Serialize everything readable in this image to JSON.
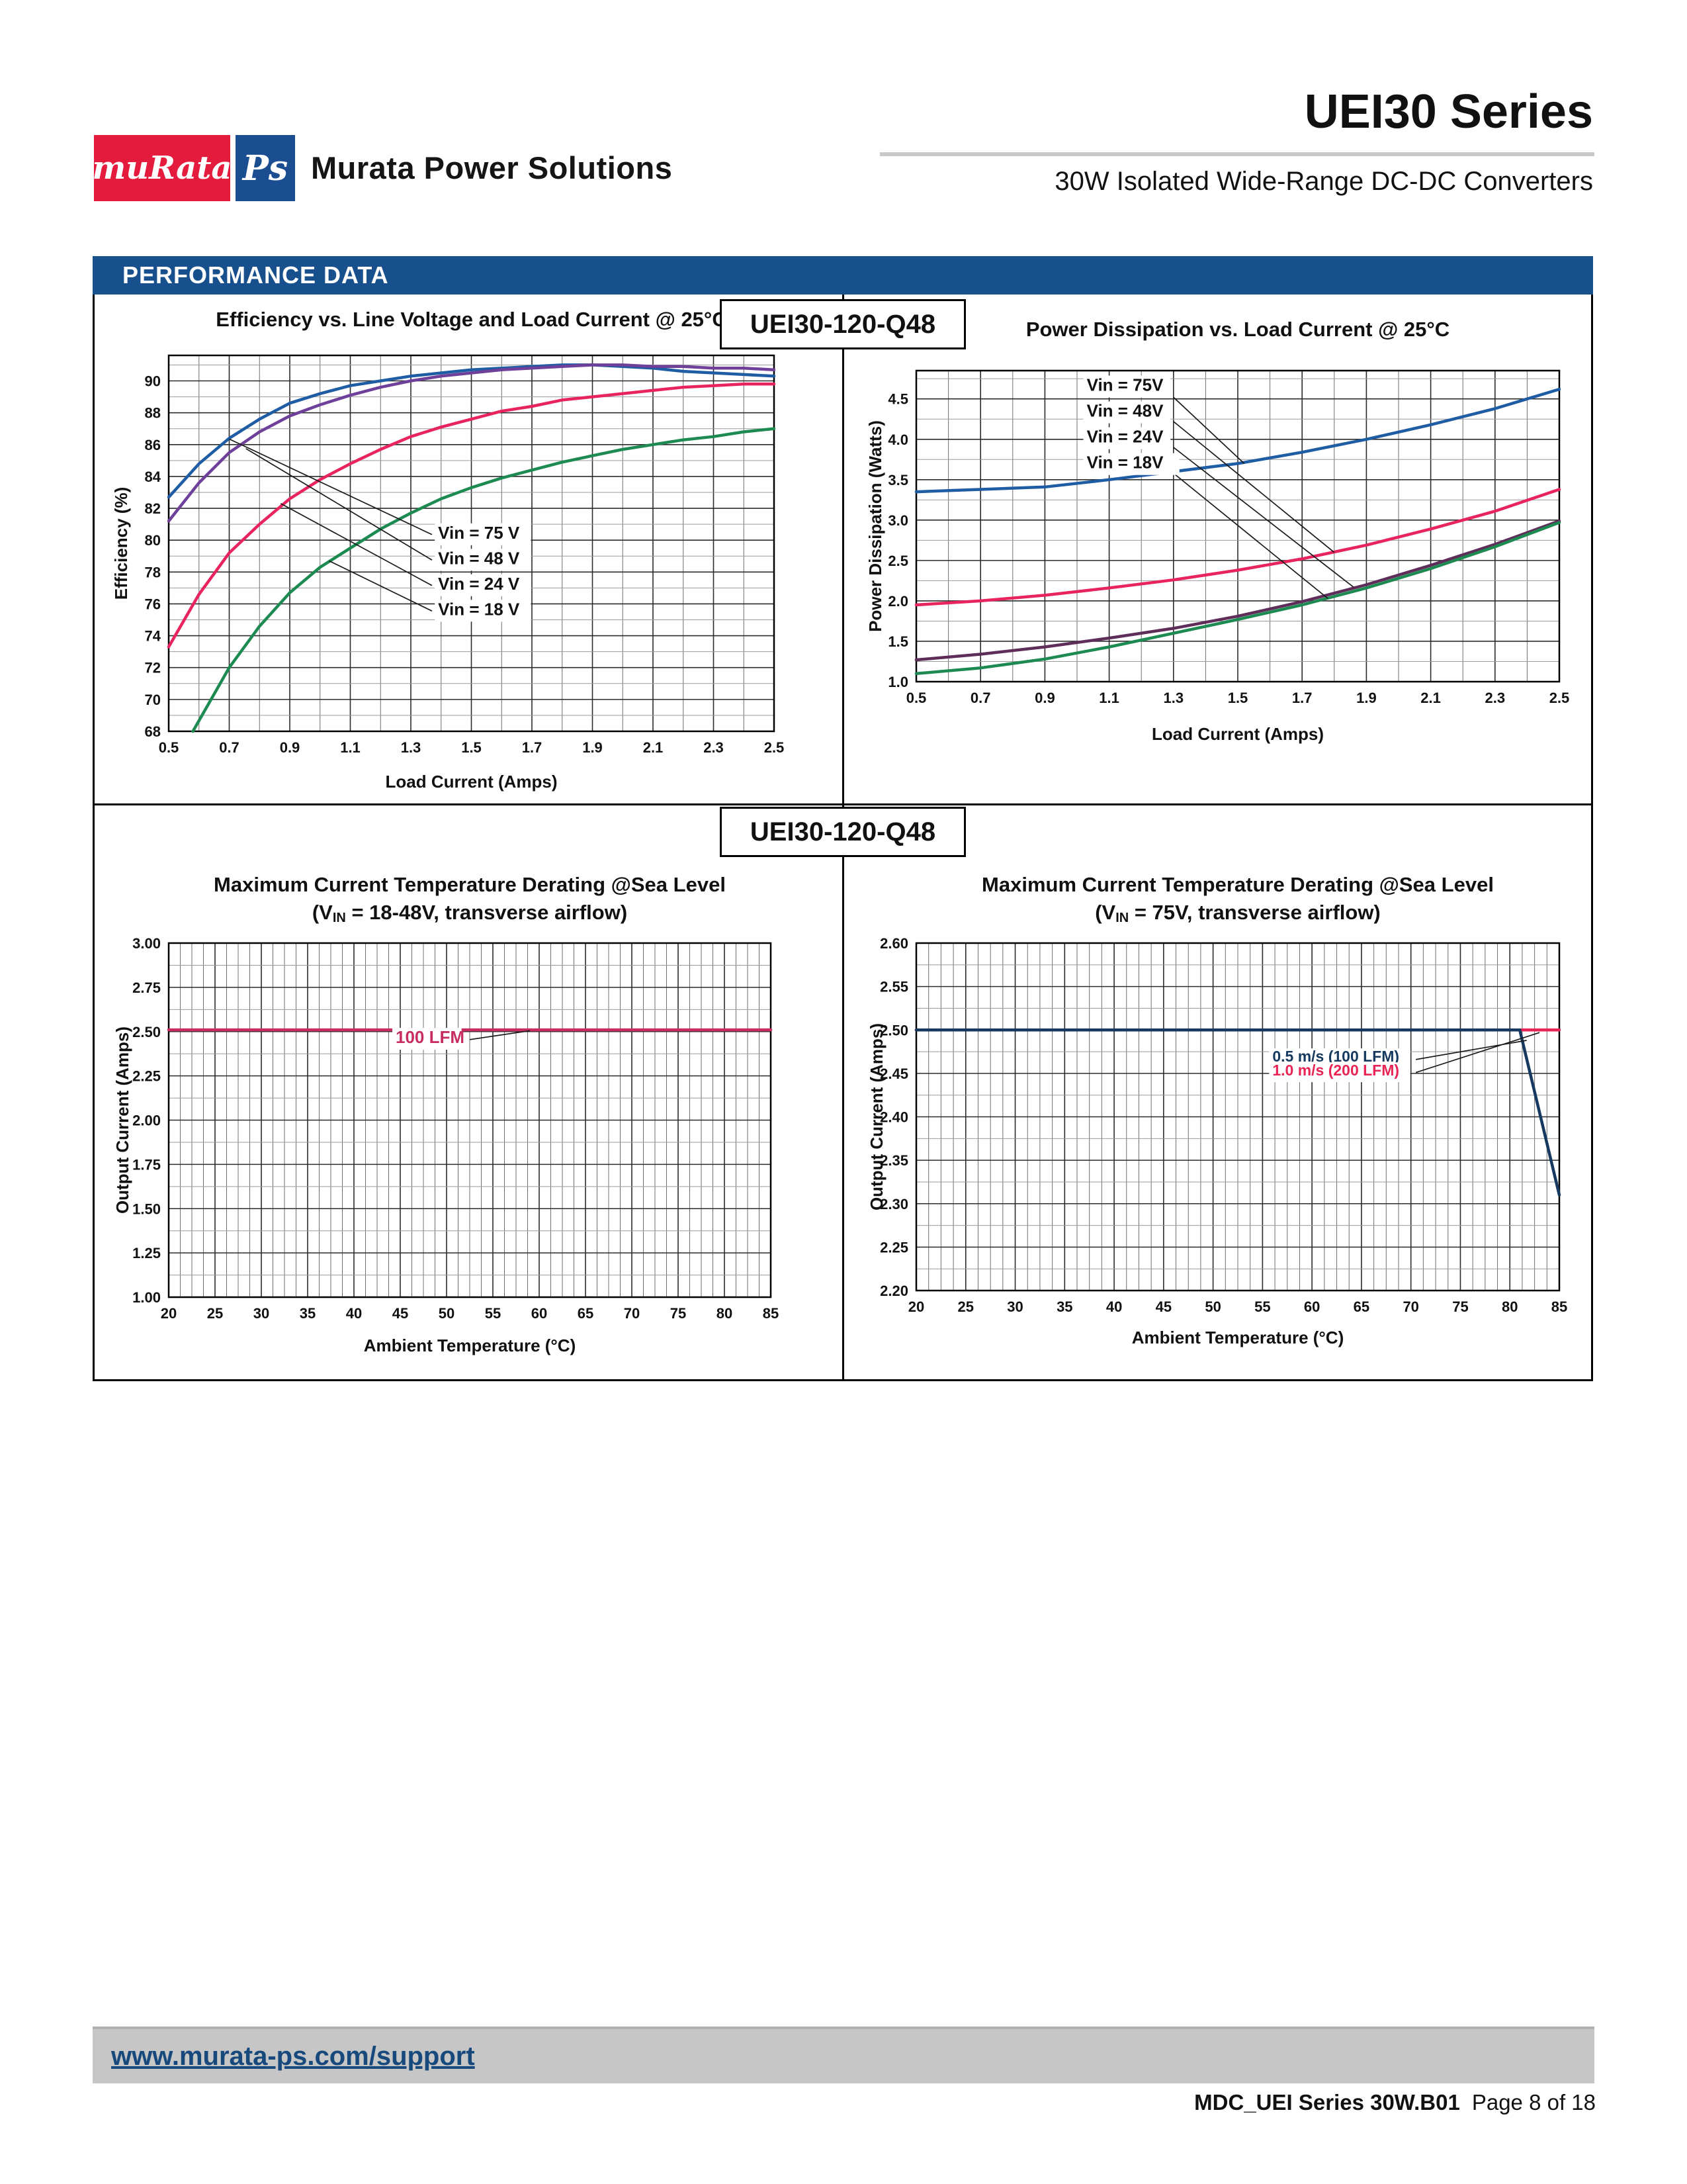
{
  "header": {
    "logo": {
      "murata_text": "muRata",
      "ps_text": "Ps",
      "company": "Murata Power Solutions"
    },
    "series_title": "UEI30 Series",
    "subtitle": "30W Isolated Wide-Range DC-DC Converters"
  },
  "section": {
    "banner": "PERFORMANCE DATA",
    "model_badge": "UEI30-120-Q48"
  },
  "footer": {
    "link": "www.murata-ps.com/support",
    "doc_id": "MDC_UEI Series 30W.B01",
    "page_info": "Page 8 of 18"
  },
  "chart_data": [
    {
      "id": "efficiency",
      "type": "line",
      "title": "Efficiency vs. Line Voltage and Load Current @ 25°C",
      "subtitle": null,
      "xlabel": "Load Current (Amps)",
      "ylabel": "Efficiency (%)",
      "xlim": [
        0.5,
        2.5
      ],
      "ylim": [
        68,
        91.6
      ],
      "xticks": {
        "minor": 0.1,
        "major": 0.2,
        "decimals": 1
      },
      "yticks": {
        "minor": 1,
        "major": 2,
        "decimals": 0
      },
      "series": [
        {
          "name": "Vin = 75 V",
          "color": "#1e5ca3",
          "points": [
            [
              0.5,
              82.7
            ],
            [
              0.6,
              84.8
            ],
            [
              0.7,
              86.4
            ],
            [
              0.8,
              87.6
            ],
            [
              0.9,
              88.6
            ],
            [
              1.0,
              89.2
            ],
            [
              1.1,
              89.7
            ],
            [
              1.2,
              90.0
            ],
            [
              1.3,
              90.3
            ],
            [
              1.4,
              90.5
            ],
            [
              1.5,
              90.7
            ],
            [
              1.6,
              90.8
            ],
            [
              1.7,
              90.9
            ],
            [
              1.8,
              91.0
            ],
            [
              1.9,
              91.0
            ],
            [
              2.0,
              90.9
            ],
            [
              2.1,
              90.8
            ],
            [
              2.2,
              90.6
            ],
            [
              2.3,
              90.5
            ],
            [
              2.4,
              90.4
            ],
            [
              2.5,
              90.3
            ]
          ]
        },
        {
          "name": "Vin = 48 V",
          "color": "#6e4099",
          "points": [
            [
              0.5,
              81.2
            ],
            [
              0.6,
              83.6
            ],
            [
              0.7,
              85.5
            ],
            [
              0.8,
              86.8
            ],
            [
              0.9,
              87.8
            ],
            [
              1.0,
              88.5
            ],
            [
              1.1,
              89.1
            ],
            [
              1.2,
              89.6
            ],
            [
              1.3,
              90.0
            ],
            [
              1.4,
              90.3
            ],
            [
              1.5,
              90.5
            ],
            [
              1.6,
              90.7
            ],
            [
              1.7,
              90.8
            ],
            [
              1.8,
              90.9
            ],
            [
              1.9,
              91.0
            ],
            [
              2.0,
              91.0
            ],
            [
              2.1,
              90.9
            ],
            [
              2.2,
              90.9
            ],
            [
              2.3,
              90.8
            ],
            [
              2.4,
              90.8
            ],
            [
              2.5,
              90.7
            ]
          ]
        },
        {
          "name": "Vin = 24 V",
          "color": "#e8245f",
          "points": [
            [
              0.5,
              73.3
            ],
            [
              0.6,
              76.6
            ],
            [
              0.7,
              79.2
            ],
            [
              0.8,
              81.0
            ],
            [
              0.9,
              82.6
            ],
            [
              1.0,
              83.8
            ],
            [
              1.1,
              84.8
            ],
            [
              1.2,
              85.7
            ],
            [
              1.3,
              86.5
            ],
            [
              1.4,
              87.1
            ],
            [
              1.5,
              87.6
            ],
            [
              1.6,
              88.1
            ],
            [
              1.7,
              88.4
            ],
            [
              1.8,
              88.8
            ],
            [
              1.9,
              89.0
            ],
            [
              2.0,
              89.2
            ],
            [
              2.1,
              89.4
            ],
            [
              2.2,
              89.6
            ],
            [
              2.3,
              89.7
            ],
            [
              2.4,
              89.8
            ],
            [
              2.5,
              89.8
            ]
          ]
        },
        {
          "name": "Vin = 18 V",
          "color": "#1d8a52",
          "points": [
            [
              0.58,
              68.0
            ],
            [
              0.7,
              72.0
            ],
            [
              0.8,
              74.6
            ],
            [
              0.9,
              76.7
            ],
            [
              1.0,
              78.3
            ],
            [
              1.1,
              79.5
            ],
            [
              1.2,
              80.7
            ],
            [
              1.3,
              81.7
            ],
            [
              1.4,
              82.6
            ],
            [
              1.5,
              83.3
            ],
            [
              1.6,
              83.9
            ],
            [
              1.7,
              84.4
            ],
            [
              1.8,
              84.9
            ],
            [
              1.9,
              85.3
            ],
            [
              2.0,
              85.7
            ],
            [
              2.1,
              86.0
            ],
            [
              2.2,
              86.3
            ],
            [
              2.3,
              86.5
            ],
            [
              2.4,
              86.8
            ],
            [
              2.5,
              87.0
            ]
          ]
        }
      ],
      "annotations": [
        {
          "text": "Vin = 75 V",
          "color": "#111",
          "x": 1.39,
          "y": 80.1,
          "fs": 26,
          "leader": [
            [
              1.37,
              80.35
            ],
            [
              0.7,
              86.35
            ]
          ]
        },
        {
          "text": "Vin = 48 V",
          "color": "#111",
          "x": 1.39,
          "y": 78.5,
          "fs": 26,
          "leader": [
            [
              1.37,
              78.75
            ],
            [
              0.755,
              85.75
            ]
          ]
        },
        {
          "text": "Vin = 24 V",
          "color": "#111",
          "x": 1.39,
          "y": 76.9,
          "fs": 26,
          "leader": [
            [
              1.37,
              77.15
            ],
            [
              0.87,
              82.3
            ]
          ]
        },
        {
          "text": "Vin = 18 V",
          "color": "#111",
          "x": 1.39,
          "y": 75.3,
          "fs": 26,
          "leader": [
            [
              1.37,
              75.55
            ],
            [
              1.03,
              78.7
            ]
          ]
        }
      ]
    },
    {
      "id": "power-dissipation",
      "type": "line",
      "title": "Power Dissipation vs. Load Current @ 25°C",
      "subtitle": null,
      "xlabel": "Load Current (Amps)",
      "ylabel": "Power Dissipation (Watts)",
      "xlim": [
        0.5,
        2.5
      ],
      "ylim": [
        1.0,
        4.85
      ],
      "xticks": {
        "minor": 0.1,
        "major": 0.2,
        "decimals": 1
      },
      "yticks": {
        "minor": 0.25,
        "major": 0.5,
        "decimals": 1
      },
      "series": [
        {
          "name": "Vin = 75V",
          "color": "#1e5ca3",
          "points": [
            [
              0.5,
              3.35
            ],
            [
              0.7,
              3.38
            ],
            [
              0.9,
              3.41
            ],
            [
              1.1,
              3.5
            ],
            [
              1.3,
              3.6
            ],
            [
              1.5,
              3.7
            ],
            [
              1.7,
              3.84
            ],
            [
              1.9,
              4.0
            ],
            [
              2.1,
              4.18
            ],
            [
              2.3,
              4.38
            ],
            [
              2.5,
              4.62
            ]
          ]
        },
        {
          "name": "Vin = 48V",
          "color": "#e8245f",
          "points": [
            [
              0.5,
              1.95
            ],
            [
              0.7,
              2.0
            ],
            [
              0.9,
              2.07
            ],
            [
              1.1,
              2.16
            ],
            [
              1.3,
              2.26
            ],
            [
              1.5,
              2.38
            ],
            [
              1.7,
              2.52
            ],
            [
              1.9,
              2.69
            ],
            [
              2.1,
              2.89
            ],
            [
              2.3,
              3.11
            ],
            [
              2.5,
              3.38
            ]
          ]
        },
        {
          "name": "Vin = 24V",
          "color": "#5e2d5a",
          "points": [
            [
              0.5,
              1.27
            ],
            [
              0.7,
              1.34
            ],
            [
              0.9,
              1.43
            ],
            [
              1.1,
              1.54
            ],
            [
              1.3,
              1.66
            ],
            [
              1.5,
              1.81
            ],
            [
              1.7,
              1.99
            ],
            [
              1.9,
              2.2
            ],
            [
              2.1,
              2.44
            ],
            [
              2.3,
              2.7
            ],
            [
              2.5,
              2.99
            ]
          ]
        },
        {
          "name": "Vin = 18V",
          "color": "#1d8a52",
          "points": [
            [
              0.5,
              1.1
            ],
            [
              0.7,
              1.17
            ],
            [
              0.9,
              1.28
            ],
            [
              1.1,
              1.43
            ],
            [
              1.3,
              1.6
            ],
            [
              1.5,
              1.77
            ],
            [
              1.7,
              1.95
            ],
            [
              1.9,
              2.16
            ],
            [
              2.1,
              2.4
            ],
            [
              2.3,
              2.67
            ],
            [
              2.5,
              2.97
            ]
          ]
        }
      ],
      "annotations": [
        {
          "text": "Vin = 75V",
          "color": "#111",
          "x": 1.03,
          "y": 4.6,
          "fs": 26,
          "leader": [
            [
              1.3,
              4.52
            ],
            [
              1.52,
              3.7
            ]
          ]
        },
        {
          "text": "Vin = 48V",
          "color": "#111",
          "x": 1.03,
          "y": 4.28,
          "fs": 26,
          "leader": [
            [
              1.3,
              4.22
            ],
            [
              1.8,
              2.6
            ]
          ]
        },
        {
          "text": "Vin = 24V",
          "color": "#111",
          "x": 1.03,
          "y": 3.96,
          "fs": 26,
          "leader": [
            [
              1.3,
              3.9
            ],
            [
              1.86,
              2.17
            ]
          ]
        },
        {
          "text": "Vin =  18V",
          "color": "#111",
          "x": 1.03,
          "y": 3.64,
          "fs": 26,
          "leader": [
            [
              1.3,
              3.58
            ],
            [
              1.78,
              2.03
            ]
          ]
        }
      ]
    },
    {
      "id": "derating-18-48v",
      "type": "line",
      "title": "Maximum Current Temperature Derating @Sea Level",
      "subtitle": "(VIN = 18-48V, transverse airflow)",
      "xlabel": "Ambient Temperature (°C)",
      "ylabel": "Output Current (Amps)",
      "xlim": [
        20,
        85
      ],
      "ylim": [
        1.0,
        3.0
      ],
      "xticks": {
        "minor": 1.25,
        "major": 5,
        "decimals": 0
      },
      "yticks": {
        "minor": 0.125,
        "major": 0.25,
        "decimals": 2
      },
      "series": [
        {
          "name": "100 LFM",
          "color": "#c72d62",
          "points": [
            [
              20,
              2.51
            ],
            [
              85,
              2.51
            ]
          ]
        }
      ],
      "annotations": [
        {
          "text": "100 LFM",
          "color": "#c72d62",
          "x": 44.5,
          "y": 2.435,
          "fs": 26,
          "leader": [
            [
              52.5,
              2.455
            ],
            [
              59,
              2.505
            ]
          ]
        }
      ]
    },
    {
      "id": "derating-75v",
      "type": "line",
      "title": "Maximum Current Temperature Derating @Sea Level",
      "subtitle": "(VIN = 75V, transverse airflow)",
      "xlabel": "Ambient Temperature (°C)",
      "ylabel": "Output Current (Amps)",
      "xlim": [
        20,
        85
      ],
      "ylim": [
        2.2,
        2.6
      ],
      "xticks": {
        "minor": 1.25,
        "major": 5,
        "decimals": 0
      },
      "yticks": {
        "minor": 0.025,
        "major": 0.05,
        "decimals": 2
      },
      "series": [
        {
          "name": "1.0 m/s (200 LFM)",
          "color": "#e82455",
          "points": [
            [
              20,
              2.5
            ],
            [
              85,
              2.5
            ]
          ]
        },
        {
          "name": "0.5 m/s (100 LFM)",
          "color": "#16395f",
          "points": [
            [
              20,
              2.5
            ],
            [
              81,
              2.5
            ],
            [
              85,
              2.31
            ]
          ]
        }
      ],
      "annotations": [
        {
          "text": "0.5 m/s (100 LFM)",
          "color": "#16395f",
          "x": 56,
          "y": 2.4635,
          "fs": 23,
          "leader": [
            [
              70.5,
              2.466
            ],
            [
              81.7,
              2.488
            ]
          ]
        },
        {
          "text": "1.0 m/s (200 LFM)",
          "color": "#e82455",
          "x": 56,
          "y": 2.4475,
          "fs": 23,
          "leader": [
            [
              70.5,
              2.451
            ],
            [
              83.0,
              2.497
            ]
          ]
        }
      ]
    }
  ]
}
